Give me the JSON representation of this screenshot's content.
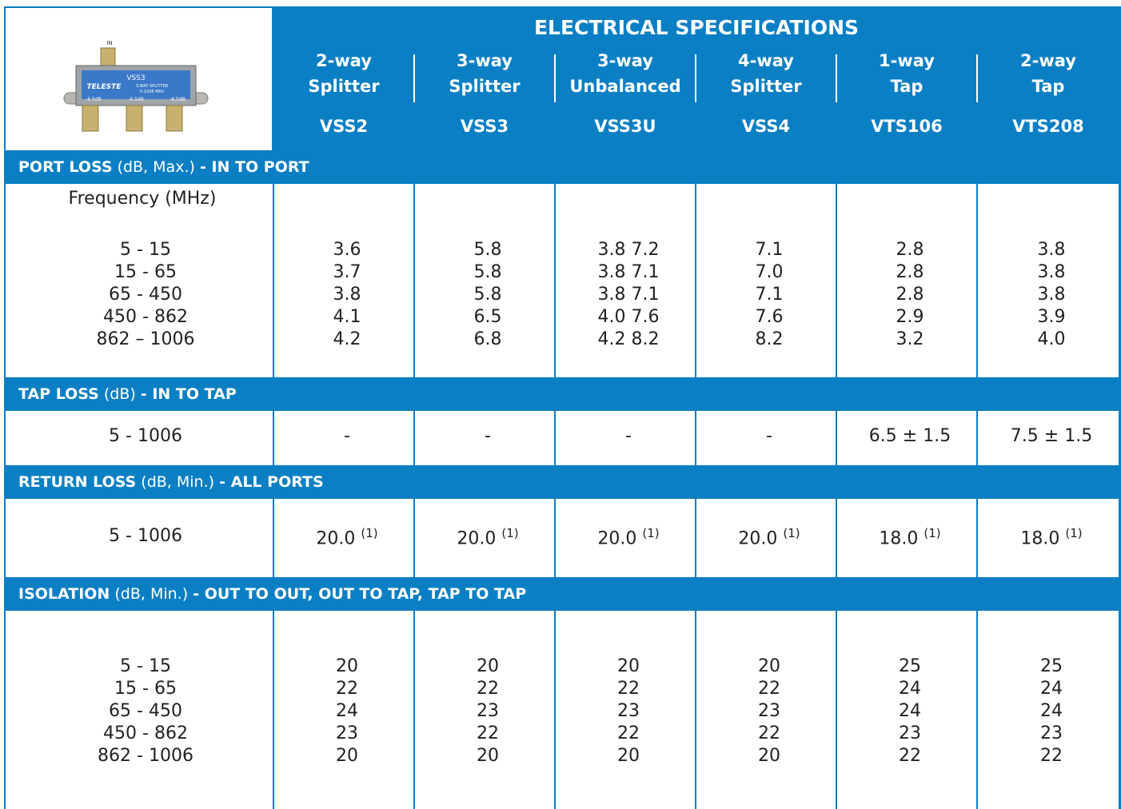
{
  "image": {
    "in_label": "IN",
    "model": "VSS3",
    "brand": "TELESTE",
    "description": "3-WAY SPLITTER",
    "range": "5-1006 MHz",
    "ports": [
      "-6.5dB",
      "-6.5dB",
      "-6.5dB"
    ]
  },
  "header": {
    "title": "ELECTRICAL SPECIFICATIONS",
    "columns": [
      {
        "line1": "2-way",
        "line2": "Splitter",
        "model": "VSS2"
      },
      {
        "line1": "3-way",
        "line2": "Splitter",
        "model": "VSS3"
      },
      {
        "line1": "3-way",
        "line2": "Unbalanced",
        "model": "VSS3U"
      },
      {
        "line1": "4-way",
        "line2": "Splitter",
        "model": "VSS4"
      },
      {
        "line1": "1-way",
        "line2": "Tap",
        "model": "VTS106"
      },
      {
        "line1": "2-way",
        "line2": "Tap",
        "model": "VTS208"
      }
    ]
  },
  "sections": [
    {
      "title": "PORT LOSS",
      "note": "(dB, Max.)",
      "suffix": "- IN TO PORT",
      "label_header": "Frequency (MHz)",
      "rows": [
        {
          "label": "5 - 15",
          "values": [
            "3.6",
            "5.8",
            "3.8 7.2",
            "7.1",
            "2.8",
            "3.8"
          ]
        },
        {
          "label": "15 - 65",
          "values": [
            "3.7",
            "5.8",
            "3.8 7.1",
            "7.0",
            "2.8",
            "3.8"
          ]
        },
        {
          "label": "65 - 450",
          "values": [
            "3.8",
            "5.8",
            "3.8 7.1",
            "7.1",
            "2.8",
            "3.8"
          ]
        },
        {
          "label": "450 - 862",
          "values": [
            "4.1",
            "6.5",
            "4.0 7.6",
            "7.6",
            "2.9",
            "3.9"
          ]
        },
        {
          "label": "862 – 1006",
          "values": [
            "4.2",
            "6.8",
            "4.2 8.2",
            "8.2",
            "3.2",
            "4.0"
          ]
        }
      ]
    },
    {
      "title": "TAP LOSS",
      "note": "(dB)",
      "suffix": "- IN TO TAP",
      "rows": [
        {
          "label": "5 - 1006",
          "values": [
            "-",
            "-",
            "-",
            "-",
            "6.5 ± 1.5",
            "7.5 ± 1.5"
          ]
        }
      ]
    },
    {
      "title": "RETURN LOSS",
      "note": "(dB, Min.)",
      "suffix": "- ALL PORTS",
      "footnote": "(1)",
      "rows": [
        {
          "label": "5 - 1006",
          "values": [
            "20.0",
            "20.0",
            "20.0",
            "20.0",
            "18.0",
            "18.0"
          ]
        }
      ]
    },
    {
      "title": "ISOLATION",
      "note": "(dB, Min.)",
      "suffix": "- OUT TO OUT, OUT TO TAP, TAP TO TAP",
      "rows": [
        {
          "label": "5 - 15",
          "values": [
            "20",
            "20",
            "20",
            "20",
            "25",
            "25"
          ]
        },
        {
          "label": "15 - 65",
          "values": [
            "22",
            "22",
            "22",
            "22",
            "24",
            "24"
          ]
        },
        {
          "label": "65 - 450",
          "values": [
            "24",
            "23",
            "23",
            "23",
            "24",
            "24"
          ]
        },
        {
          "label": "450 - 862",
          "values": [
            "23",
            "22",
            "22",
            "22",
            "23",
            "23"
          ]
        },
        {
          "label": "862 - 1006",
          "values": [
            "20",
            "20",
            "20",
            "20",
            "22",
            "22"
          ]
        }
      ]
    }
  ]
}
